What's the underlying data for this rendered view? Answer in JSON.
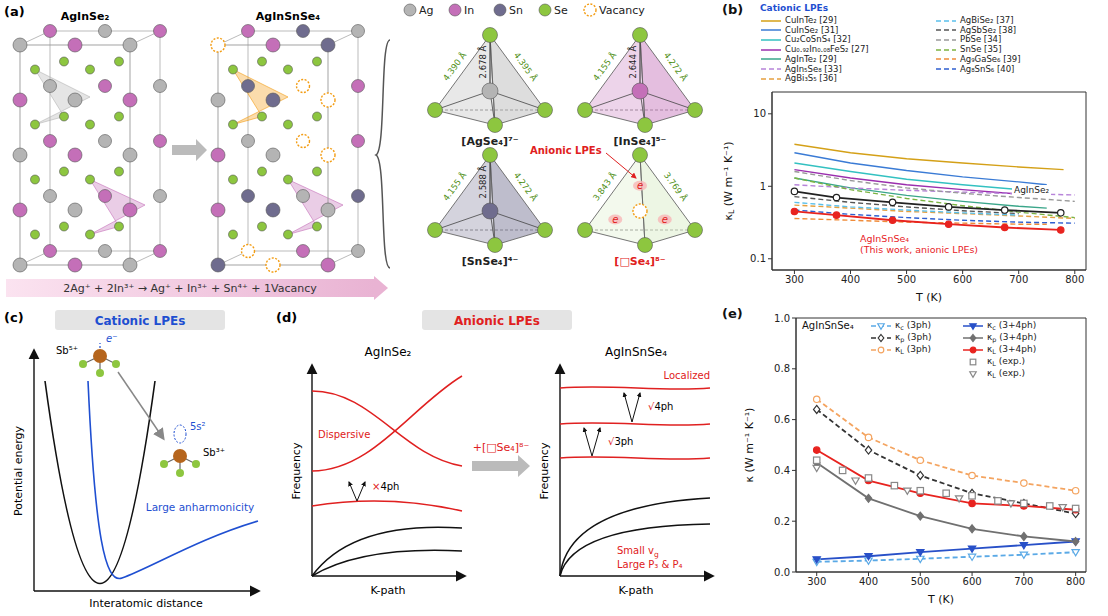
{
  "chart_data": [
    {
      "panel_label": "(b)",
      "type": "line",
      "x_label": "T (K)",
      "y_label": "κL (W m⁻¹ K⁻¹)",
      "xlim": [
        260,
        820
      ],
      "xticks": [
        300,
        400,
        500,
        600,
        700,
        800
      ],
      "ylim": [
        0.07,
        20
      ],
      "yticks": [
        0.1,
        1,
        10
      ],
      "log": "y",
      "legend": "top",
      "annotations": [
        "Cationic LPEs"
      ],
      "series": [
        {
          "name": "CuInTe₂ [29]",
          "color": "#d4a017",
          "line_style": "solid",
          "marker": "none",
          "x": [
            300,
            400,
            500,
            600,
            700,
            780
          ],
          "values": [
            3.8,
            2.9,
            2.4,
            2.1,
            1.85,
            1.7
          ]
        },
        {
          "name": "CuInSe₂ [31]",
          "color": "#3a7bd5",
          "line_style": "solid",
          "marker": "none",
          "x": [
            300,
            400,
            500,
            600,
            700,
            750
          ],
          "values": [
            2.9,
            2.1,
            1.65,
            1.35,
            1.15,
            1.05
          ]
        },
        {
          "name": "Cu₂CoSnS₄ [32]",
          "color": "#33c1c1",
          "line_style": "solid",
          "marker": "none",
          "x": [
            300,
            400,
            500,
            600,
            700
          ],
          "values": [
            2.1,
            1.6,
            1.25,
            1.05,
            0.9
          ]
        },
        {
          "name": "Cu₀.₉₂In₀.₀₈FeS₂ [27]",
          "color": "#9b2fae",
          "line_style": "solid",
          "marker": "none",
          "x": [
            300,
            400,
            500,
            600,
            700
          ],
          "values": [
            1.7,
            1.3,
            1.05,
            0.9,
            0.78
          ]
        },
        {
          "name": "AgInTe₂ [29]",
          "color": "#3aa68a",
          "line_style": "solid",
          "marker": "none",
          "x": [
            300,
            400,
            500,
            600,
            700,
            750
          ],
          "values": [
            1.3,
            0.95,
            0.75,
            0.62,
            0.53,
            0.5
          ]
        },
        {
          "name": "AgIn₅Se₈ [33]",
          "color": "#b784d9",
          "line_style": "dashed",
          "marker": "none",
          "x": [
            300,
            400,
            500,
            600,
            700,
            800
          ],
          "values": [
            1.05,
            0.95,
            0.88,
            0.83,
            0.79,
            0.76
          ]
        },
        {
          "name": "AgBi₃S₅ [36]",
          "color": "#e6a040",
          "line_style": "dashed",
          "marker": "none",
          "x": [
            300,
            400,
            500,
            600,
            700,
            800
          ],
          "values": [
            0.55,
            0.5,
            0.45,
            0.42,
            0.39,
            0.36
          ]
        },
        {
          "name": "AgBiSe₂ [37]",
          "color": "#5bc0eb",
          "line_style": "dashed",
          "marker": "none",
          "x": [
            300,
            400,
            500,
            600,
            700
          ],
          "values": [
            0.6,
            0.52,
            0.47,
            0.43,
            0.4
          ]
        },
        {
          "name": "AgSbSe₂ [38]",
          "color": "#555555",
          "line_style": "dashed",
          "marker": "none",
          "x": [
            300,
            400,
            500,
            600,
            700
          ],
          "values": [
            0.72,
            0.6,
            0.52,
            0.46,
            0.42
          ]
        },
        {
          "name": "PbSe [34]",
          "color": "#999999",
          "line_style": "dashed",
          "marker": "none",
          "x": [
            300,
            400,
            500,
            600,
            700,
            800
          ],
          "values": [
            1.6,
            1.2,
            0.95,
            0.8,
            0.7,
            0.62
          ]
        },
        {
          "name": "SnSe [35]",
          "color": "#7cb342",
          "line_style": "dashed",
          "marker": "none",
          "x": [
            300,
            400,
            500,
            600,
            700,
            800
          ],
          "values": [
            1.3,
            0.9,
            0.68,
            0.54,
            0.44,
            0.37
          ]
        },
        {
          "name": "Ag₉GaSe₆ [39]",
          "color": "#f08c3a",
          "line_style": "dashed",
          "marker": "none",
          "x": [
            300,
            400,
            500,
            600,
            700,
            750
          ],
          "values": [
            0.36,
            0.34,
            0.32,
            0.31,
            0.3,
            0.3
          ]
        },
        {
          "name": "Ag₈SnS₆ [40]",
          "color": "#2f5fd0",
          "line_style": "dashed",
          "marker": "none",
          "x": [
            300,
            400,
            500,
            600,
            700,
            800
          ],
          "values": [
            0.47,
            0.41,
            0.37,
            0.34,
            0.32,
            0.31
          ]
        },
        {
          "name": "AgInSe₂",
          "color": "#222222",
          "line_style": "solid",
          "marker": "open circle",
          "x": [
            300,
            375,
            475,
            575,
            675,
            775
          ],
          "values": [
            0.85,
            0.7,
            0.6,
            0.52,
            0.47,
            0.43
          ]
        },
        {
          "name": "AgInSnSe₄ (This work, anionic LPEs)",
          "color": "#e8231f",
          "line_style": "solid",
          "marker": "circle",
          "x": [
            300,
            375,
            475,
            575,
            675,
            775
          ],
          "values": [
            0.45,
            0.4,
            0.34,
            0.3,
            0.27,
            0.25
          ]
        }
      ]
    },
    {
      "panel_label": "(e)",
      "type": "line",
      "x_label": "T (K)",
      "y_label": "κ (W m⁻¹ K⁻¹)",
      "xlim": [
        260,
        820
      ],
      "xticks": [
        300,
        400,
        500,
        600,
        700,
        800
      ],
      "ylim": [
        0,
        1
      ],
      "yticks": [
        {
          "value": 0,
          "label": "0.0"
        },
        0.2,
        0.4,
        0.6,
        0.8,
        {
          "value": 1,
          "label": "1.0"
        }
      ],
      "legend": "upper right",
      "annotations": [
        "AgInSnSe₄"
      ],
      "series": [
        {
          "name": "κc (3ph)",
          "color": "#5aa9e6",
          "line_style": "dashed",
          "marker": "open triangle",
          "x": [
            300,
            400,
            500,
            600,
            700,
            800
          ],
          "values": [
            0.04,
            0.045,
            0.052,
            0.06,
            0.068,
            0.078
          ]
        },
        {
          "name": "κp (3ph)",
          "color": "#333333",
          "line_style": "dashed",
          "marker": "open diamond",
          "x": [
            300,
            400,
            500,
            600,
            700,
            800
          ],
          "values": [
            0.64,
            0.48,
            0.38,
            0.31,
            0.27,
            0.23
          ]
        },
        {
          "name": "κL (3ph)",
          "color": "#f4a460",
          "line_style": "dashed",
          "marker": "open circle",
          "x": [
            300,
            400,
            500,
            600,
            700,
            800
          ],
          "values": [
            0.68,
            0.53,
            0.44,
            0.38,
            0.35,
            0.32
          ]
        },
        {
          "name": "κc (3+4ph)",
          "color": "#2850c8",
          "line_style": "solid",
          "marker": "triangle",
          "x": [
            300,
            400,
            500,
            600,
            700,
            800
          ],
          "values": [
            0.05,
            0.062,
            0.078,
            0.092,
            0.106,
            0.12
          ]
        },
        {
          "name": "κp (3+4ph)",
          "color": "#707070",
          "line_style": "solid",
          "marker": "diamond",
          "x": [
            300,
            400,
            500,
            600,
            700,
            800
          ],
          "values": [
            0.43,
            0.29,
            0.22,
            0.17,
            0.14,
            0.12
          ]
        },
        {
          "name": "κL (3+4ph)",
          "color": "#e8231f",
          "line_style": "solid",
          "marker": "circle",
          "x": [
            300,
            400,
            500,
            600,
            700,
            800
          ],
          "values": [
            0.48,
            0.36,
            0.31,
            0.27,
            0.26,
            0.245
          ]
        },
        {
          "name": "κL (exp.)",
          "color": "#888888",
          "line_style": "none",
          "marker": "open square",
          "x": [
            300,
            350,
            400,
            450,
            500,
            550,
            600,
            650,
            700,
            750,
            800
          ],
          "values": [
            0.44,
            0.4,
            0.37,
            0.34,
            0.32,
            0.31,
            0.3,
            0.28,
            0.27,
            0.26,
            0.25
          ]
        },
        {
          "name": "κL (exp.)",
          "color": "#888888",
          "line_style": "none",
          "marker": "open triangle",
          "x": [
            300,
            375,
            475,
            575,
            675,
            775
          ],
          "values": [
            0.41,
            0.36,
            0.32,
            0.29,
            0.27,
            0.255
          ]
        }
      ]
    }
  ],
  "diagrams": {
    "a": {
      "panel_label": "(a)",
      "structures": [
        "AgInSe₂",
        "AgInSnSe₄"
      ],
      "atoms": [
        {
          "label": "Ag",
          "color": "#b4b4b4"
        },
        {
          "label": "In",
          "color": "#c46fb8"
        },
        {
          "label": "Sn",
          "color": "#6f6c8e"
        },
        {
          "label": "Se",
          "color": "#8dc63f"
        },
        {
          "label": "Vacancy",
          "color": "#f39c12"
        }
      ],
      "tetrahedra": [
        {
          "name": "[AgSe₄]⁷⁻",
          "center": "Ag",
          "bond": "2.678 Å",
          "edges": [
            "4.390 Å",
            "4.395 Å"
          ]
        },
        {
          "name": "[InSe₄]⁵⁻",
          "center": "In",
          "bond": "2.644 Å",
          "edges": [
            "4.155 Å",
            "4.272 Å"
          ]
        },
        {
          "name": "[SnSe₄]⁴⁻",
          "center": "Sn",
          "bond": "2.588 Å",
          "edges": [
            "4.155 Å",
            "4.272 Å"
          ]
        },
        {
          "name": "[□Se₄]⁸⁻",
          "center": "Vacancy",
          "edges": [
            "3.843 Å",
            "3.769 Å"
          ],
          "annotation": "Anionic LPEs",
          "lone_pair": "e"
        }
      ],
      "reaction": "2Ag⁺ + 2In³⁺ → Ag⁺ + In³⁺ + Sn⁴⁺ + 1Vacancy"
    },
    "c": {
      "panel_label": "(c)",
      "header": "Cationic LPEs",
      "y_label": "Potential energy",
      "x_label": "Interatomic distance",
      "high_state": "Sb⁵⁺",
      "electron": "e⁻",
      "low_state": "Sb³⁺",
      "lone_pair": "5s²",
      "note": "Large anharmonicity"
    },
    "d": {
      "panel_label": "(d)",
      "header": "Anionic LPEs",
      "y_label": "Frequency",
      "x_label": "K-path",
      "left": {
        "title": "AgInSe₂",
        "label": "Dispersive",
        "process": "×4ph"
      },
      "transition": "+[□Se₄]⁸⁻",
      "right": {
        "title": "AgInSnSe₄",
        "label": "Localized",
        "processes": [
          "√4ph",
          "√3ph"
        ],
        "notes": [
          "Small vg",
          "Large P₃ & P₄"
        ]
      }
    }
  }
}
